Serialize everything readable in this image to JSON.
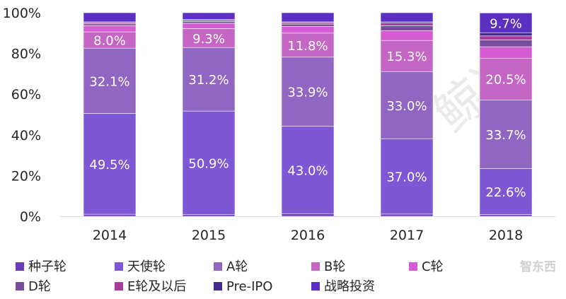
{
  "chart_data": {
    "type": "bar",
    "stacked": true,
    "percent": true,
    "categories": [
      "2014",
      "2015",
      "2016",
      "2017",
      "2018"
    ],
    "ylim": [
      0,
      100
    ],
    "yticks": [
      0,
      20,
      40,
      60,
      80,
      100
    ],
    "ytick_labels": [
      "0%",
      "20%",
      "40%",
      "60%",
      "80%",
      "100%"
    ],
    "grid": false,
    "legend_position": "bottom",
    "series": [
      {
        "name": "种子轮",
        "color": "#6a3cb8",
        "values": [
          1.0,
          0.8,
          1.3,
          1.1,
          0.9
        ]
      },
      {
        "name": "天使轮",
        "color": "#7e57d4",
        "values": [
          49.5,
          50.9,
          43.0,
          37.0,
          22.6
        ],
        "labels": [
          "49.5%",
          "50.9%",
          "43.0%",
          "37.0%",
          "22.6%"
        ]
      },
      {
        "name": "A轮",
        "color": "#9166c2",
        "values": [
          32.1,
          31.2,
          33.9,
          33.0,
          33.7
        ],
        "labels": [
          "32.1%",
          "31.2%",
          "33.9%",
          "33.0%",
          "33.7%"
        ]
      },
      {
        "name": "B轮",
        "color": "#c566c4",
        "values": [
          8.0,
          9.3,
          11.8,
          15.3,
          20.5
        ],
        "labels": [
          "8.0%",
          "9.3%",
          "11.8%",
          "15.3%",
          "20.5%"
        ]
      },
      {
        "name": "C轮",
        "color": "#d45bd1",
        "values": [
          3.0,
          2.6,
          3.3,
          4.8,
          5.6
        ]
      },
      {
        "name": "D轮",
        "color": "#7a4c9f",
        "values": [
          0.9,
          0.9,
          1.1,
          2.4,
          3.3
        ]
      },
      {
        "name": "E轮及以后",
        "color": "#a83c9a",
        "values": [
          0.6,
          0.6,
          0.7,
          1.3,
          2.0
        ]
      },
      {
        "name": "Pre-IPO",
        "color": "#44298e",
        "values": [
          0.4,
          0.3,
          0.4,
          0.6,
          1.6
        ]
      },
      {
        "name": "战略投资",
        "color": "#5b2fc2",
        "values": [
          4.5,
          3.4,
          4.5,
          4.5,
          9.7
        ],
        "labels": [
          "",
          "",
          "",
          "",
          "9.7%"
        ]
      }
    ]
  },
  "watermark": "鲸准",
  "logo": "智东西"
}
